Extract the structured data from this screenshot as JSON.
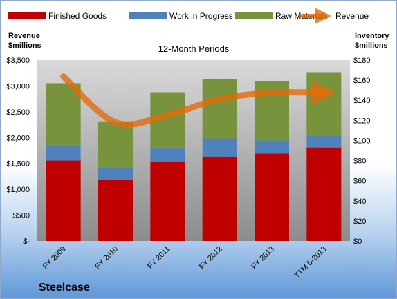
{
  "chart_data": {
    "type": "bar",
    "subtitle": "12-Month Periods",
    "company": "Steelcase",
    "ylabel_left": [
      "Revenue",
      "$millions"
    ],
    "ylabel_right": [
      "Inventory",
      "$millions"
    ],
    "categories": [
      "FY 2009",
      "FY 2010",
      "FY 2011",
      "FY 2012",
      "FY 2013",
      "TTM 5-2013"
    ],
    "left_axis": {
      "ylim": [
        0,
        3500
      ],
      "ticks": [
        0,
        500,
        1000,
        1500,
        2000,
        2500,
        3000,
        3500
      ],
      "tick_labels": [
        "$-",
        "$500",
        "$1,000",
        "$1,500",
        "$2,000",
        "$2,500",
        "$3,000",
        "$3,500"
      ]
    },
    "right_axis": {
      "ylim": [
        0,
        180
      ],
      "ticks": [
        0,
        20,
        40,
        60,
        80,
        100,
        120,
        140,
        160,
        180
      ],
      "tick_labels": [
        "$0",
        "$20",
        "$40",
        "$60",
        "$80",
        "$100",
        "$120",
        "$140",
        "$160",
        "$180"
      ]
    },
    "stacked_axis": "right",
    "series": [
      {
        "name": "Finished Goods",
        "kind": "bar",
        "axis": "right",
        "color": "#c00000",
        "values": [
          80,
          61,
          79,
          84,
          87,
          93
        ]
      },
      {
        "name": "Work in Progress",
        "kind": "bar",
        "axis": "right",
        "color": "#4f81bd",
        "values": [
          15,
          12,
          13,
          18,
          13,
          12
        ]
      },
      {
        "name": "Raw Materials",
        "kind": "bar",
        "axis": "right",
        "color": "#77933c",
        "values": [
          62,
          46,
          56,
          59,
          59,
          63
        ]
      },
      {
        "name": "Revenue",
        "kind": "line",
        "axis": "left",
        "color": "#e46c0a",
        "values": [
          3183,
          2292,
          2437,
          2749,
          2869,
          2868
        ]
      }
    ],
    "legend_placement": "top",
    "grid": false
  }
}
